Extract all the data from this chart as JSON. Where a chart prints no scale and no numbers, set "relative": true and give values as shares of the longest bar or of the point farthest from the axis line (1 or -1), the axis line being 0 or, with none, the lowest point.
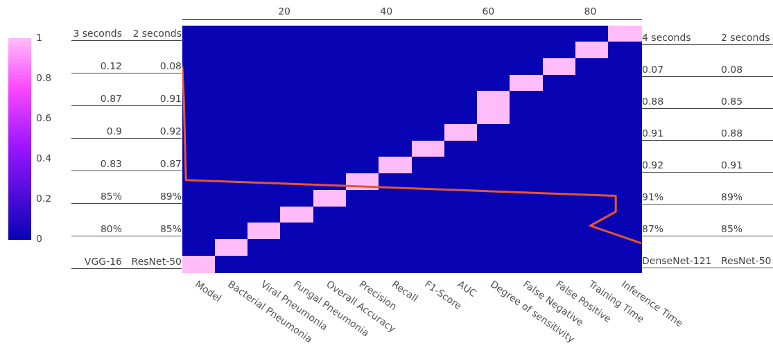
{
  "chart_data": [
    {
      "type": "heatmap",
      "categories": [
        "Model",
        "Bacterial Pneumonia",
        "Viral Pneumonia",
        "Fungal Pneumonia",
        "Overall Accuracy",
        "Precision",
        "Recall",
        "F1-Score",
        "AUC",
        "Degree of sensitivity",
        "False Negative",
        "False Positive",
        "Training Time",
        "Inference Time"
      ],
      "y_categories": [
        null,
        null,
        null,
        null,
        null,
        null,
        null,
        null,
        null,
        null,
        null,
        null,
        null,
        null,
        null
      ],
      "cells": [
        [
          0,
          0,
          0,
          0,
          0,
          0,
          0,
          0,
          0,
          0,
          0,
          0,
          0,
          1
        ],
        [
          0,
          0,
          0,
          0,
          0,
          0,
          0,
          0,
          0,
          0,
          0,
          0,
          1,
          0
        ],
        [
          0,
          0,
          0,
          0,
          0,
          0,
          0,
          0,
          0,
          0,
          0,
          1,
          0,
          0
        ],
        [
          0,
          0,
          0,
          0,
          0,
          0,
          0,
          0,
          0,
          0,
          1,
          0,
          0,
          0
        ],
        [
          0,
          0,
          0,
          0,
          0,
          0,
          0,
          0,
          0,
          1,
          0,
          0,
          0,
          0
        ],
        [
          0,
          0,
          0,
          0,
          0,
          0,
          0,
          0,
          0,
          1,
          0,
          0,
          0,
          0
        ],
        [
          0,
          0,
          0,
          0,
          0,
          0,
          0,
          0,
          1,
          0,
          0,
          0,
          0,
          0
        ],
        [
          0,
          0,
          0,
          0,
          0,
          0,
          0,
          1,
          0,
          0,
          0,
          0,
          0,
          0
        ],
        [
          0,
          0,
          0,
          0,
          0,
          0,
          1,
          0,
          0,
          0,
          0,
          0,
          0,
          0
        ],
        [
          0,
          0,
          0,
          0,
          0,
          1,
          0,
          0,
          0,
          0,
          0,
          0,
          0,
          0
        ],
        [
          0,
          0,
          0,
          0,
          1,
          0,
          0,
          0,
          0,
          0,
          0,
          0,
          0,
          0
        ],
        [
          0,
          0,
          0,
          1,
          0,
          0,
          0,
          0,
          0,
          0,
          0,
          0,
          0,
          0
        ],
        [
          0,
          0,
          1,
          0,
          0,
          0,
          0,
          0,
          0,
          0,
          0,
          0,
          0,
          0
        ],
        [
          0,
          1,
          0,
          0,
          0,
          0,
          0,
          0,
          0,
          0,
          0,
          0,
          0,
          0
        ],
        [
          1,
          0,
          0,
          0,
          0,
          0,
          0,
          0,
          0,
          0,
          0,
          0,
          0,
          0
        ]
      ],
      "clim": [
        0,
        1
      ],
      "cticks": [
        0,
        0.2,
        0.4,
        0.6,
        0.8,
        1
      ],
      "annotations": [
        "3 seconds",
        "2 seconds",
        "0.12",
        "0.08",
        "0.87",
        "0.91",
        "0.9",
        "0.92",
        "0.83",
        "0.87",
        "85%",
        "89%",
        "80%",
        "85%",
        "VGG-16",
        "ResNet-50",
        "4 seconds",
        "2 seconds",
        "0.07",
        "0.08",
        "0.88",
        "0.85",
        "0.91",
        "0.88",
        "0.92",
        "0.91",
        "91%",
        "89%",
        "87%",
        "85%",
        "DenseNet-121",
        "ResNet-50"
      ]
    },
    {
      "type": "line",
      "relative": true,
      "color": "#e8552d",
      "marker": "none",
      "x": [
        0,
        0.3,
        0.7,
        85,
        85,
        80,
        90
      ],
      "values": [
        1,
        0.82,
        0.36,
        0.27,
        0.18,
        0.1,
        0
      ],
      "xlim": [
        0,
        90
      ],
      "xticks": [
        20,
        40,
        60,
        80
      ]
    }
  ]
}
